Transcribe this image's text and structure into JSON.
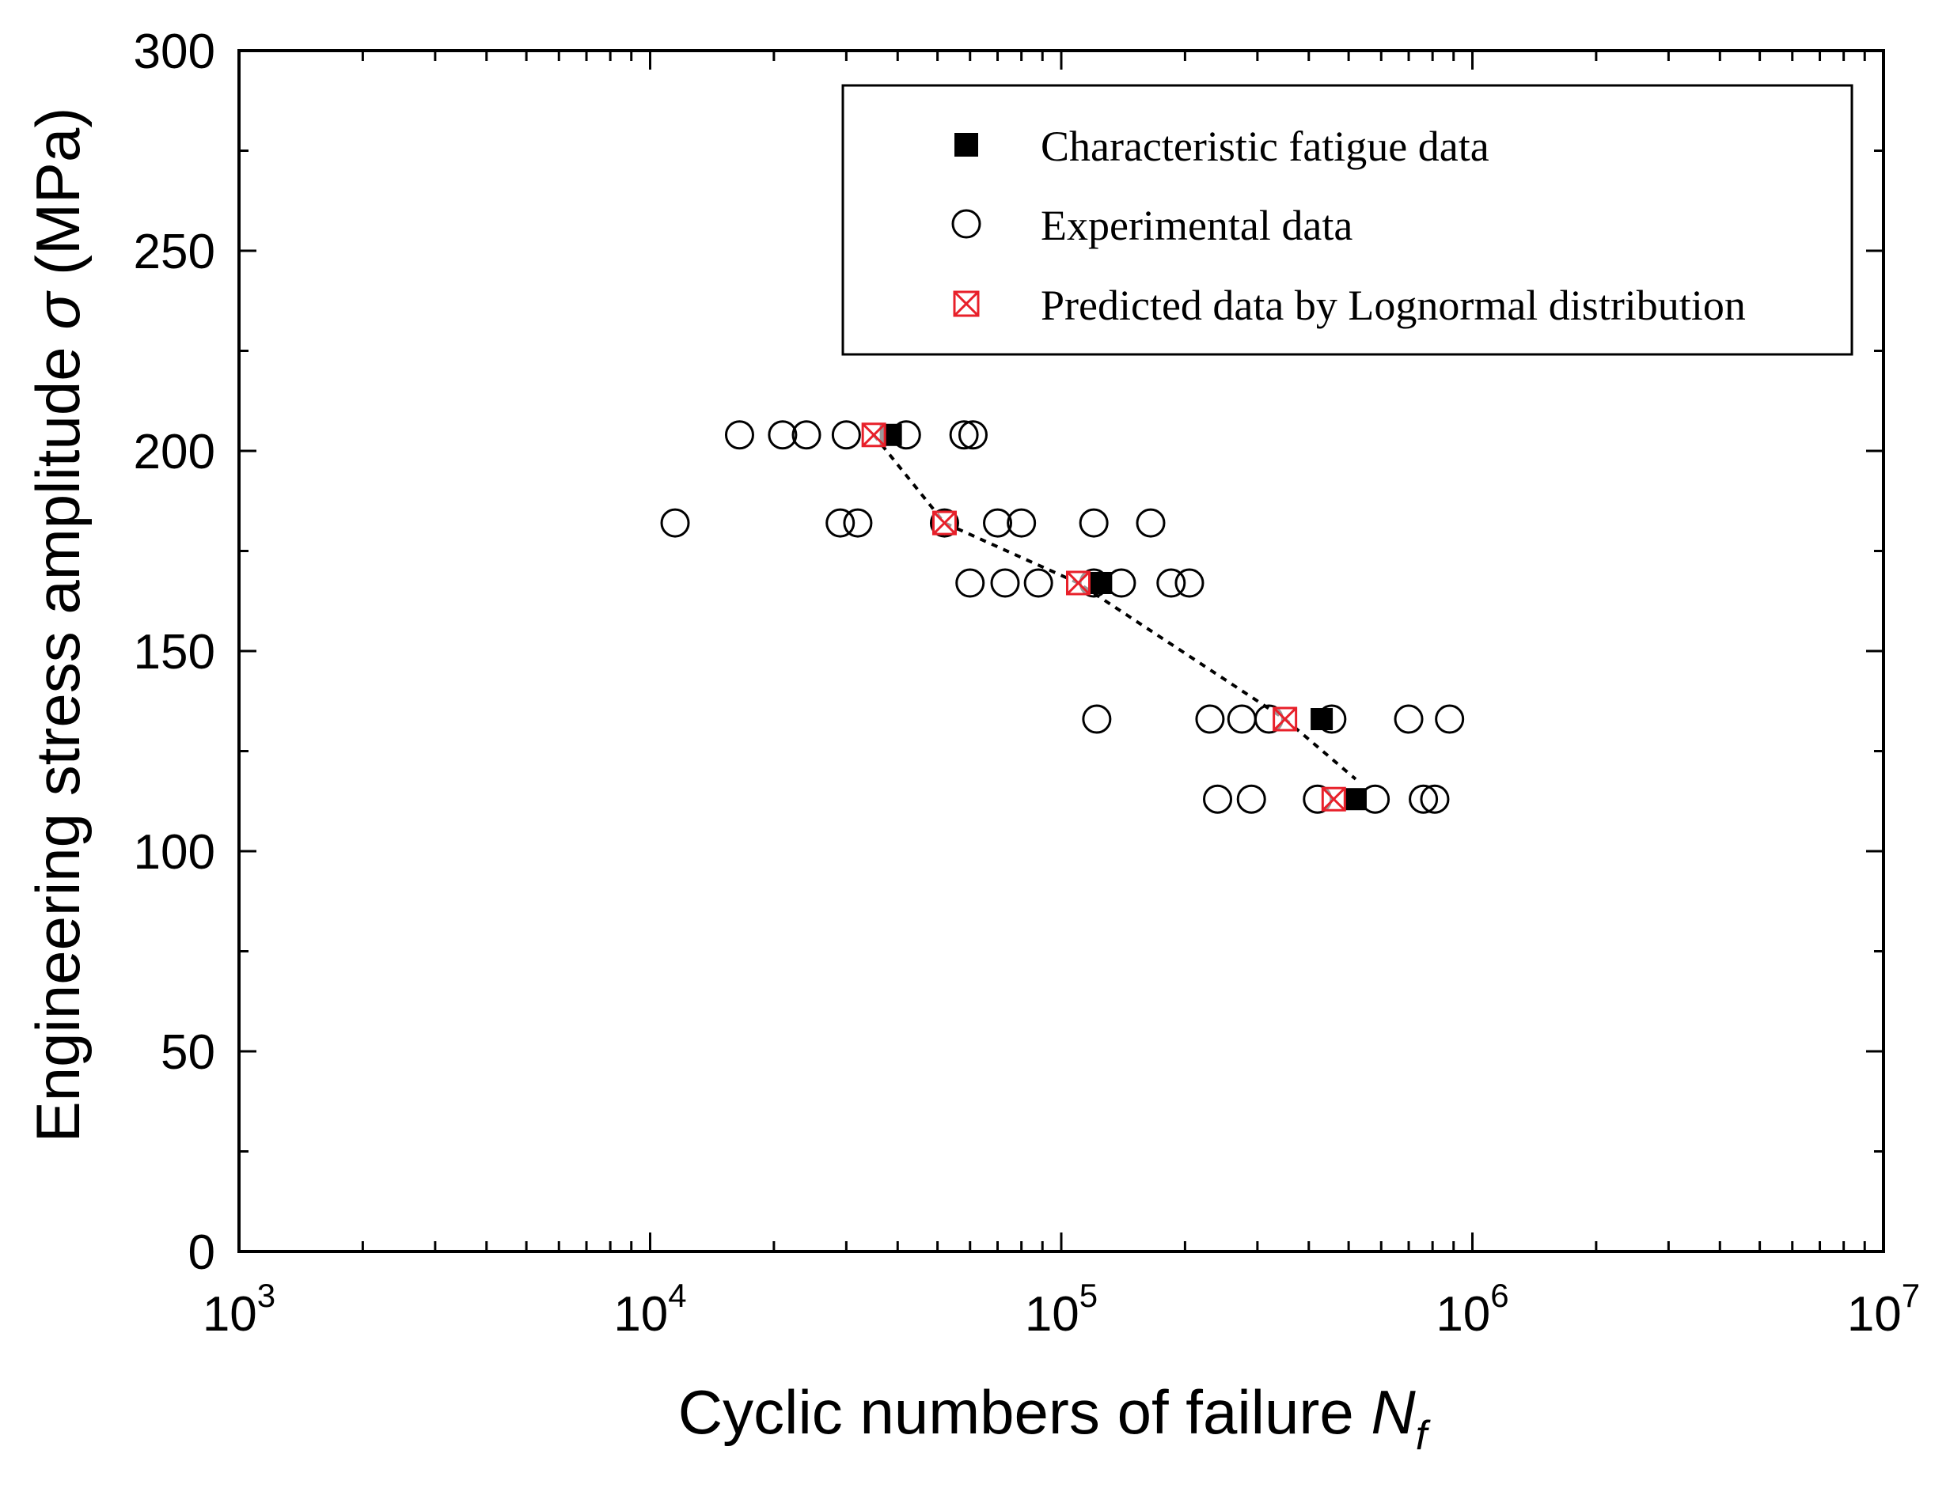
{
  "chart_data": {
    "type": "scatter",
    "title": "",
    "xlabel": "Cyclic numbers of failure ",
    "xlabel_var": "N",
    "xlabel_sub": "f",
    "ylabel": "Engineering stress amplitude ",
    "ylabel_sym": "σ",
    "ylabel_unit": " (MPa)",
    "x_scale": "log",
    "xlim": [
      1000,
      10000000
    ],
    "ylim": [
      0,
      300
    ],
    "x_ticks": [
      {
        "base": "10",
        "exp": "3",
        "value": 1000
      },
      {
        "base": "10",
        "exp": "4",
        "value": 10000
      },
      {
        "base": "10",
        "exp": "5",
        "value": 100000
      },
      {
        "base": "10",
        "exp": "6",
        "value": 1000000
      },
      {
        "base": "10",
        "exp": "7",
        "value": 10000000
      }
    ],
    "y_ticks": [
      "0",
      "50",
      "100",
      "150",
      "200",
      "250",
      "300"
    ],
    "legend_position": "top-right",
    "series": [
      {
        "name": "Characteristic fatigue data",
        "marker": "filled-square",
        "color": "#000000",
        "points": [
          [
            38500,
            204
          ],
          [
            125000,
            167
          ],
          [
            430000,
            133
          ],
          [
            520000,
            113
          ]
        ]
      },
      {
        "name": "Experimental data",
        "marker": "open-circle",
        "color": "#000000",
        "points": [
          [
            16500,
            204
          ],
          [
            21000,
            204
          ],
          [
            24000,
            204
          ],
          [
            30000,
            204
          ],
          [
            42000,
            204
          ],
          [
            58000,
            204
          ],
          [
            61000,
            204
          ],
          [
            11500,
            182
          ],
          [
            29000,
            182
          ],
          [
            32000,
            182
          ],
          [
            52000,
            182
          ],
          [
            70000,
            182
          ],
          [
            80000,
            182
          ],
          [
            120000,
            182
          ],
          [
            165000,
            182
          ],
          [
            60000,
            167
          ],
          [
            73000,
            167
          ],
          [
            88000,
            167
          ],
          [
            120000,
            167
          ],
          [
            140000,
            167
          ],
          [
            185000,
            167
          ],
          [
            205000,
            167
          ],
          [
            122000,
            133
          ],
          [
            230000,
            133
          ],
          [
            275000,
            133
          ],
          [
            320000,
            133
          ],
          [
            455000,
            133
          ],
          [
            700000,
            133
          ],
          [
            880000,
            133
          ],
          [
            240000,
            113
          ],
          [
            290000,
            113
          ],
          [
            420000,
            113
          ],
          [
            580000,
            113
          ],
          [
            760000,
            113
          ],
          [
            810000,
            113
          ]
        ]
      },
      {
        "name": "Predicted data by Lognormal distribution",
        "marker": "crossed-square",
        "color": "#e8202a",
        "points": [
          [
            35000,
            204
          ],
          [
            52000,
            182
          ],
          [
            110000,
            167
          ],
          [
            350000,
            133
          ],
          [
            460000,
            113
          ]
        ]
      }
    ],
    "trend_line": {
      "style": "dotted",
      "color": "#000000",
      "points": [
        [
          35000,
          204
        ],
        [
          52000,
          182
        ],
        [
          110000,
          167
        ],
        [
          350000,
          133
        ],
        [
          520000,
          118
        ]
      ]
    }
  }
}
